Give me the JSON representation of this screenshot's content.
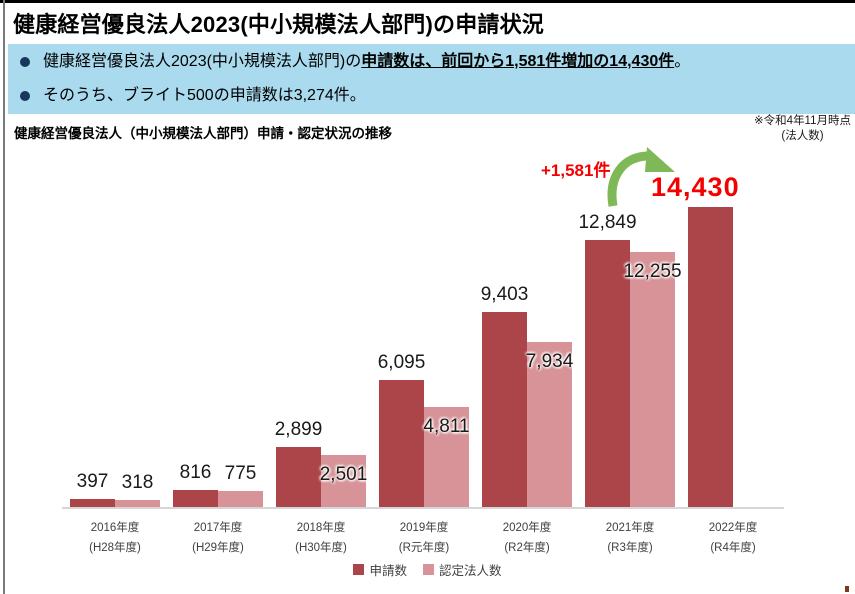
{
  "slide": {
    "title": "健康経営優良法人2023(中小規模法人部門)の申請状況"
  },
  "summary": {
    "bullet1": {
      "prefix": "健康経営優良法人2023(中小規模法人部門)の",
      "emphasis": "申請数は、前回から1,581件増加の14,430件",
      "suffix": "。"
    },
    "bullet2": {
      "text": "そのうち、ブライト500の申請数は3,274件。"
    }
  },
  "chart": {
    "heading": "健康経営優良法人（中小規模法人部門）申請・認定状況の推移",
    "note": {
      "line1": "※令和4年11月時点",
      "line2": "(法人数)"
    },
    "annotations": {
      "increase": "+1,581件",
      "highlight": "14,430"
    },
    "legend": [
      {
        "label": "申請数",
        "color": "#AB4549"
      },
      {
        "label": "認定法人数",
        "color": "#D79397"
      }
    ]
  },
  "chart_data": {
    "type": "bar",
    "title": "健康経営優良法人（中小規模法人部門）申請・認定状況の推移",
    "xlabel": "",
    "ylabel": "",
    "unit": "件",
    "ylim": [
      0,
      14430
    ],
    "grid": false,
    "legend_position": "bottom",
    "categories": [
      {
        "line1": "2016年度",
        "line2": "(H28年度)"
      },
      {
        "line1": "2017年度",
        "line2": "(H29年度)"
      },
      {
        "line1": "2018年度",
        "line2": "(H30年度)"
      },
      {
        "line1": "2019年度",
        "line2": "(R元年度)"
      },
      {
        "line1": "2020年度",
        "line2": "(R2年度)"
      },
      {
        "line1": "2021年度",
        "line2": "(R3年度)"
      },
      {
        "line1": "2022年度",
        "line2": "(R4年度)"
      }
    ],
    "series": [
      {
        "name": "申請数",
        "color": "#AB4549",
        "values": [
          397,
          816,
          2899,
          6095,
          9403,
          12849,
          14430
        ]
      },
      {
        "name": "認定法人数",
        "color": "#D79397",
        "values": [
          318,
          775,
          2501,
          4811,
          7934,
          12255,
          null
        ]
      }
    ]
  },
  "colors": {
    "applications_bar": "#AB4549",
    "certified_bar": "#D79397",
    "summary_box_bg": "#A9DAEE",
    "bullet_marker": "#17375D",
    "highlight_red": "#F50000",
    "arrow_green": "#7FB857",
    "axis_line": "#D6D6D6",
    "tick_text": "#404040"
  }
}
